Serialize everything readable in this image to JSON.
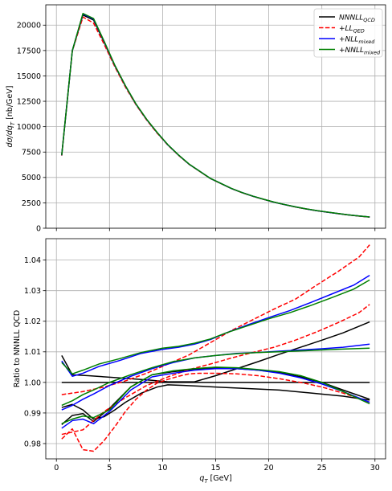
{
  "chart_data": [
    {
      "type": "line",
      "ylabel": "dσ/dq_T [nb/GeV]",
      "xlim": [
        -1,
        31
      ],
      "ylim": [
        0,
        22000
      ],
      "xticks": [
        0,
        5,
        10,
        15,
        20,
        25,
        30
      ],
      "xtick_labels": [
        "",
        "",
        "",
        "",
        "",
        "",
        ""
      ],
      "yticks": [
        0,
        2500,
        5000,
        7500,
        10000,
        12500,
        15000,
        17500,
        20000
      ],
      "ytick_labels": [
        "0",
        "2500",
        "5000",
        "7500",
        "10000",
        "12500",
        "15000",
        "17500",
        "20000"
      ],
      "grid": true,
      "legend_position": "top-right",
      "legend": [
        {
          "main": "NNNLL",
          "sub": "QCD",
          "prefix": "",
          "color": "#000000",
          "dash": "solid"
        },
        {
          "main": "LL",
          "sub": "QED",
          "prefix": "+",
          "color": "#ff0000",
          "dash": "dashed"
        },
        {
          "main": "NLL",
          "sub": "mixed",
          "prefix": "+",
          "color": "#0000ff",
          "dash": "solid"
        },
        {
          "main": "NNLL",
          "sub": "mixed",
          "prefix": "+",
          "color": "#008000",
          "dash": "solid"
        }
      ],
      "x": [
        0.5,
        1.5,
        2.5,
        3.5,
        4.5,
        5.5,
        6.5,
        7.5,
        8.5,
        9.5,
        10.5,
        11.5,
        12.5,
        13.5,
        14.5,
        15.5,
        16.5,
        17.5,
        18.5,
        19.5,
        20.5,
        21.5,
        22.5,
        23.5,
        24.5,
        25.5,
        26.5,
        27.5,
        28.5,
        29.5
      ],
      "series": [
        {
          "color": "#000000",
          "dash": "solid",
          "values": [
            7200,
            17500,
            21000,
            20500,
            18300,
            16000,
            14000,
            12200,
            10700,
            9400,
            8200,
            7200,
            6300,
            5600,
            4900,
            4400,
            3900,
            3500,
            3150,
            2850,
            2560,
            2320,
            2100,
            1900,
            1730,
            1580,
            1440,
            1310,
            1200,
            1100
          ]
        },
        {
          "color": "#ff0000",
          "dash": "dashed",
          "values": [
            7150,
            17450,
            20800,
            20200,
            18100,
            15900,
            13900,
            12150,
            10650,
            9350,
            8180,
            7180,
            6290,
            5590,
            4895,
            4395,
            3898,
            3498,
            3148,
            2849,
            2559,
            2319,
            2099,
            1899,
            1729,
            1579,
            1439,
            1309,
            1199,
            1099
          ]
        },
        {
          "color": "#0000ff",
          "dash": "solid",
          "values": [
            7180,
            17480,
            21100,
            20600,
            18350,
            16030,
            14020,
            12210,
            10710,
            9405,
            8205,
            7205,
            6305,
            5605,
            4905,
            4405,
            3905,
            3505,
            3155,
            2855,
            2565,
            2325,
            2105,
            1905,
            1735,
            1585,
            1445,
            1315,
            1205,
            1105
          ]
        },
        {
          "color": "#008000",
          "dash": "solid",
          "values": [
            7190,
            17490,
            21150,
            20650,
            18400,
            16060,
            14040,
            12230,
            10730,
            9420,
            8220,
            7215,
            6315,
            5610,
            4910,
            4410,
            3910,
            3510,
            3160,
            2860,
            2570,
            2330,
            2110,
            1910,
            1740,
            1590,
            1450,
            1320,
            1210,
            1110
          ]
        }
      ]
    },
    {
      "type": "line",
      "xlabel": "q_T [GeV]",
      "ylabel": "Ratio to NNNLL QCD",
      "xlim": [
        -1,
        31
      ],
      "ylim": [
        0.975,
        1.047
      ],
      "xticks": [
        0,
        5,
        10,
        15,
        20,
        25,
        30
      ],
      "xtick_labels": [
        "0",
        "5",
        "10",
        "15",
        "20",
        "25",
        "30"
      ],
      "yticks": [
        0.98,
        0.99,
        1.0,
        1.01,
        1.02,
        1.03,
        1.04
      ],
      "ytick_labels": [
        "0.98",
        "0.99",
        "1.00",
        "1.01",
        "1.02",
        "1.03",
        "1.04"
      ],
      "grid": true,
      "series": [
        {
          "color": "#000000",
          "dash": "solid",
          "x": [
            0.5,
            29.5
          ],
          "values": [
            1.0,
            1.0
          ]
        },
        {
          "color": "#000000",
          "dash": "solid",
          "x": [
            0.5,
            1.5,
            3,
            5,
            7,
            9,
            10.5,
            13,
            15,
            17,
            19,
            21,
            23,
            25,
            27,
            29.5
          ],
          "values": [
            1.0088,
            1.0025,
            1.0022,
            1.0017,
            1.0012,
            1.0007,
            1.0002,
            1.0002,
            1.0022,
            1.0045,
            1.0068,
            1.0092,
            1.0115,
            1.0138,
            1.0162,
            1.0198
          ]
        },
        {
          "color": "#000000",
          "dash": "solid",
          "x": [
            0.5,
            1.5,
            2.5,
            3.5,
            4.5,
            5.5,
            6.5,
            8,
            9.5,
            10.5,
            12,
            15,
            18,
            21,
            24,
            27,
            29.5
          ],
          "values": [
            0.9918,
            0.9928,
            0.991,
            0.988,
            0.9888,
            0.991,
            0.9935,
            0.9965,
            0.9985,
            0.9992,
            0.999,
            0.9985,
            0.998,
            0.9975,
            0.9965,
            0.9955,
            0.9942
          ]
        },
        {
          "color": "#000000",
          "dash": "solid",
          "x": [
            0.5,
            1.5,
            2.5,
            3.5,
            5,
            7,
            9,
            11,
            13,
            15,
            17,
            19,
            21,
            23,
            25,
            27,
            29.5
          ],
          "values": [
            0.9862,
            0.9892,
            0.9898,
            0.9872,
            0.9915,
            0.9985,
            1.0025,
            1.0035,
            1.0042,
            1.0048,
            1.0045,
            1.004,
            1.0032,
            1.0018,
            1.0,
            0.9975,
            0.9945
          ]
        },
        {
          "color": "#ff0000",
          "dash": "dashed",
          "x": [
            0.5,
            2.5,
            4.5,
            6.5,
            8.5,
            10.5,
            12.5,
            14.5,
            16.5,
            18.5,
            20.5,
            22.5,
            24.5,
            26.5,
            28.5,
            29.5
          ],
          "values": [
            0.996,
            0.997,
            0.9985,
            1.0005,
            1.003,
            1.006,
            1.009,
            1.013,
            1.017,
            1.0205,
            1.024,
            1.0272,
            1.0318,
            1.0362,
            1.041,
            1.045
          ]
        },
        {
          "color": "#ff0000",
          "dash": "dashed",
          "x": [
            0.5,
            2.5,
            4.5,
            6.5,
            8.5,
            10.5,
            12.5,
            14.5,
            16.5,
            18.5,
            20.5,
            22.5,
            24.5,
            26.5,
            28.5,
            29.5
          ],
          "values": [
            0.983,
            0.9845,
            0.9905,
            0.995,
            0.999,
            1.0018,
            1.0042,
            1.006,
            1.008,
            1.0098,
            1.0115,
            1.0138,
            1.0165,
            1.0195,
            1.0228,
            1.0255
          ]
        },
        {
          "color": "#ff0000",
          "dash": "dashed",
          "x": [
            0.5,
            1.5,
            2.5,
            3.5,
            4.5,
            5.5,
            6.5,
            7.5,
            8.5,
            9.5,
            10.5,
            11.5,
            12.5,
            13.5,
            15,
            17,
            19,
            21,
            23,
            25,
            27,
            29.5
          ],
          "values": [
            0.9815,
            0.9848,
            0.978,
            0.9775,
            0.981,
            0.9855,
            0.9905,
            0.9945,
            0.9975,
            0.9998,
            1.001,
            1.002,
            1.0028,
            1.003,
            1.003,
            1.0028,
            1.0022,
            1.0012,
            1.0,
            0.9985,
            0.9965,
            0.9935
          ]
        },
        {
          "color": "#0000ff",
          "dash": "solid",
          "x": [
            0.5,
            1.5,
            2.5,
            4,
            6,
            8,
            10,
            11.5,
            13,
            14.5,
            16,
            18,
            20,
            22,
            24,
            26,
            28,
            29.5
          ],
          "values": [
            1.007,
            1.002,
            1.003,
            1.0052,
            1.0072,
            1.0095,
            1.0108,
            1.0115,
            1.0125,
            1.014,
            1.0162,
            1.0188,
            1.0212,
            1.0235,
            1.0262,
            1.029,
            1.0318,
            1.035
          ]
        },
        {
          "color": "#0000ff",
          "dash": "solid",
          "x": [
            0.5,
            1.5,
            2.5,
            3.5,
            5,
            7,
            9,
            11,
            13,
            15,
            17,
            19,
            21,
            23,
            25,
            27,
            29.5
          ],
          "values": [
            0.991,
            0.9925,
            0.9945,
            0.9962,
            0.999,
            1.002,
            1.0045,
            1.0065,
            1.008,
            1.0088,
            1.0095,
            1.0098,
            1.0102,
            1.0106,
            1.011,
            1.0115,
            1.0125
          ]
        },
        {
          "color": "#0000ff",
          "dash": "solid",
          "x": [
            0.5,
            1.5,
            2.5,
            3.5,
            5,
            7,
            9,
            11,
            13,
            15,
            17,
            19,
            21,
            23,
            25,
            27,
            29.5
          ],
          "values": [
            0.985,
            0.9875,
            0.988,
            0.9865,
            0.9905,
            0.9975,
            1.0018,
            1.003,
            1.004,
            1.0045,
            1.0045,
            1.004,
            1.003,
            1.0015,
            0.9995,
            0.997,
            0.9935
          ]
        },
        {
          "color": "#008000",
          "dash": "solid",
          "x": [
            0.5,
            1.5,
            2.5,
            4,
            6,
            8,
            10,
            11.5,
            13,
            14.5,
            16,
            18,
            20,
            22,
            24,
            26,
            28,
            29.5
          ],
          "values": [
            1.0065,
            1.0028,
            1.004,
            1.006,
            1.0078,
            1.0098,
            1.0112,
            1.0118,
            1.0128,
            1.0142,
            1.0162,
            1.0185,
            1.0208,
            1.0228,
            1.0252,
            1.0278,
            1.0305,
            1.0335
          ]
        },
        {
          "color": "#008000",
          "dash": "solid",
          "x": [
            0.5,
            1.5,
            2.5,
            3.5,
            5,
            7,
            9,
            11,
            13,
            15,
            17,
            19,
            21,
            23,
            25,
            27,
            29.5
          ],
          "values": [
            0.9925,
            0.994,
            0.996,
            0.9975,
            1.0,
            1.0025,
            1.0048,
            1.0068,
            1.008,
            1.0088,
            1.0094,
            1.0098,
            1.01,
            1.0103,
            1.0106,
            1.0109,
            1.0112
          ]
        },
        {
          "color": "#008000",
          "dash": "solid",
          "x": [
            0.5,
            1.5,
            2.5,
            3.5,
            5,
            7,
            9,
            11,
            13,
            15,
            17,
            19,
            21,
            23,
            25,
            27,
            29.5
          ],
          "values": [
            0.9865,
            0.988,
            0.989,
            0.9885,
            0.991,
            0.9985,
            1.0025,
            1.0038,
            1.0045,
            1.005,
            1.0048,
            1.0042,
            1.0035,
            1.0022,
            1.0,
            0.997,
            0.993
          ]
        }
      ]
    }
  ]
}
